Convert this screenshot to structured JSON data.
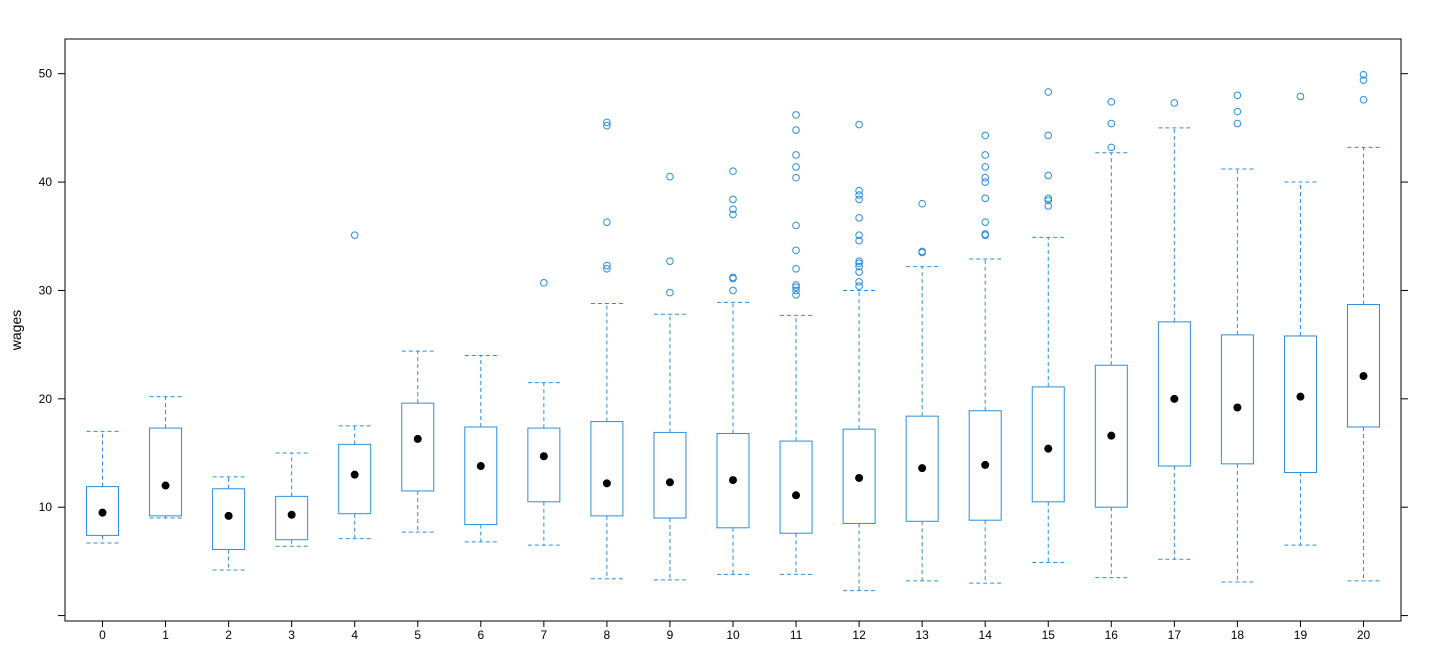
{
  "chart_data": {
    "type": "boxplot",
    "ylabel": "wages",
    "xlabel": "",
    "ylim": [
      -0.5,
      53.2
    ],
    "y_ticks": [
      10,
      20,
      30,
      40,
      50
    ],
    "grid": false,
    "colors": {
      "box": "#2a8fdc",
      "median": "#000000",
      "frame": "#000000"
    },
    "categories": [
      "0",
      "1",
      "2",
      "3",
      "4",
      "5",
      "6",
      "7",
      "8",
      "9",
      "10",
      "11",
      "12",
      "13",
      "14",
      "15",
      "16",
      "17",
      "18",
      "19",
      "20"
    ],
    "boxes": [
      {
        "whisker_low": 6.7,
        "q1": 7.4,
        "median": 9.5,
        "q3": 11.9,
        "whisker_high": 17.0,
        "outliers": []
      },
      {
        "whisker_low": 9.0,
        "q1": 9.2,
        "median": 12.0,
        "q3": 17.3,
        "whisker_high": 20.2,
        "outliers": []
      },
      {
        "whisker_low": 4.2,
        "q1": 6.1,
        "median": 9.2,
        "q3": 11.7,
        "whisker_high": 12.8,
        "outliers": []
      },
      {
        "whisker_low": 6.4,
        "q1": 7.0,
        "median": 9.3,
        "q3": 11.0,
        "whisker_high": 15.0,
        "outliers": []
      },
      {
        "whisker_low": 7.1,
        "q1": 9.4,
        "median": 13.0,
        "q3": 15.8,
        "whisker_high": 17.5,
        "outliers": [
          35.1
        ]
      },
      {
        "whisker_low": 7.7,
        "q1": 11.5,
        "median": 16.3,
        "q3": 19.6,
        "whisker_high": 24.4,
        "outliers": []
      },
      {
        "whisker_low": 6.8,
        "q1": 8.4,
        "median": 13.8,
        "q3": 17.4,
        "whisker_high": 24.0,
        "outliers": []
      },
      {
        "whisker_low": 6.5,
        "q1": 10.5,
        "median": 14.7,
        "q3": 17.3,
        "whisker_high": 21.5,
        "outliers": [
          30.7
        ]
      },
      {
        "whisker_low": 3.4,
        "q1": 9.2,
        "median": 12.2,
        "q3": 17.9,
        "whisker_high": 28.8,
        "outliers": [
          32.0,
          32.3,
          36.3,
          45.2,
          45.5
        ]
      },
      {
        "whisker_low": 3.3,
        "q1": 9.0,
        "median": 12.3,
        "q3": 16.9,
        "whisker_high": 27.8,
        "outliers": [
          29.8,
          32.7,
          40.5
        ]
      },
      {
        "whisker_low": 3.8,
        "q1": 8.1,
        "median": 12.5,
        "q3": 16.8,
        "whisker_high": 28.9,
        "outliers": [
          30.0,
          31.1,
          31.2,
          37.0,
          37.5,
          38.4,
          41.0
        ]
      },
      {
        "whisker_low": 3.8,
        "q1": 7.6,
        "median": 11.1,
        "q3": 16.1,
        "whisker_high": 27.7,
        "outliers": [
          29.6,
          30.0,
          30.3,
          30.5,
          32.0,
          33.7,
          36.0,
          40.4,
          41.4,
          42.5,
          44.8,
          46.2
        ]
      },
      {
        "whisker_low": 2.3,
        "q1": 8.5,
        "median": 12.7,
        "q3": 17.2,
        "whisker_high": 30.0,
        "outliers": [
          30.4,
          30.8,
          31.7,
          32.2,
          32.5,
          32.7,
          34.6,
          35.1,
          36.7,
          38.4,
          38.8,
          39.2,
          45.3
        ]
      },
      {
        "whisker_low": 3.2,
        "q1": 8.7,
        "median": 13.6,
        "q3": 18.4,
        "whisker_high": 32.2,
        "outliers": [
          33.5,
          33.6,
          38.0
        ]
      },
      {
        "whisker_low": 3.0,
        "q1": 8.8,
        "median": 13.9,
        "q3": 18.9,
        "whisker_high": 32.9,
        "outliers": [
          35.1,
          35.2,
          36.3,
          38.5,
          40.0,
          40.4,
          41.4,
          42.5,
          44.3
        ]
      },
      {
        "whisker_low": 4.9,
        "q1": 10.5,
        "median": 15.4,
        "q3": 21.1,
        "whisker_high": 34.9,
        "outliers": [
          37.8,
          38.3,
          38.5,
          40.6,
          44.3,
          48.3
        ]
      },
      {
        "whisker_low": 3.5,
        "q1": 10.0,
        "median": 16.6,
        "q3": 23.1,
        "whisker_high": 42.7,
        "outliers": [
          43.2,
          45.4,
          47.4
        ]
      },
      {
        "whisker_low": 5.2,
        "q1": 13.8,
        "median": 20.0,
        "q3": 27.1,
        "whisker_high": 45.0,
        "outliers": [
          47.3
        ]
      },
      {
        "whisker_low": 3.1,
        "q1": 14.0,
        "median": 19.2,
        "q3": 25.9,
        "whisker_high": 41.2,
        "outliers": [
          45.4,
          46.5,
          48.0
        ]
      },
      {
        "whisker_low": 6.5,
        "q1": 13.2,
        "median": 20.2,
        "q3": 25.8,
        "whisker_high": 40.0,
        "outliers": [
          47.9
        ]
      },
      {
        "whisker_low": 3.2,
        "q1": 17.4,
        "median": 22.1,
        "q3": 28.7,
        "whisker_high": 43.2,
        "outliers": [
          47.6,
          49.4,
          49.9
        ]
      }
    ]
  }
}
